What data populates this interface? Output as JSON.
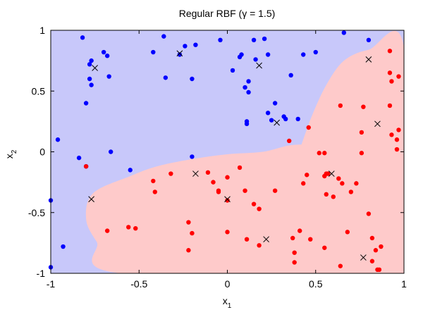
{
  "chart_data": {
    "type": "scatter",
    "title": "Regular RBF (γ = 1.5)",
    "xlabel": "x",
    "xlabel_sub": "1",
    "ylabel": "x",
    "ylabel_sub": "2",
    "xlim": [
      -1,
      1
    ],
    "ylim": [
      -1,
      1
    ],
    "grid": false,
    "xticks": [
      "-1",
      "-0.5",
      "0",
      "0.5",
      "1"
    ],
    "yticks": [
      "-1",
      "-0.5",
      "0",
      "0.5",
      "1"
    ],
    "region_colors": {
      "class_blue": "#c8c8fa",
      "class_red": "#fecaca"
    },
    "decision_boundary": [
      [
        -1.0,
        0.0
      ],
      [
        0.42,
        0.06
      ],
      [
        0.48,
        0.3
      ],
      [
        0.56,
        0.55
      ],
      [
        0.66,
        0.75
      ],
      [
        0.8,
        0.84
      ],
      [
        1.0,
        0.86
      ],
      [
        1.0,
        -1.0
      ],
      [
        -0.6,
        -1.0
      ],
      [
        -0.74,
        -0.74
      ],
      [
        -0.8,
        -0.55
      ],
      [
        -0.76,
        -0.34
      ],
      [
        -0.55,
        -0.2
      ],
      [
        -0.4,
        -0.12
      ],
      [
        -0.2,
        -0.06
      ],
      [
        0.0,
        -0.02
      ],
      [
        0.2,
        0.0
      ],
      [
        0.34,
        0.05
      ],
      [
        0.42,
        0.06
      ]
    ],
    "series": [
      {
        "marker": "dot",
        "color": "#0000ff",
        "points": [
          [
            -0.82,
            0.94
          ],
          [
            -0.77,
            0.75
          ],
          [
            -0.78,
            0.72
          ],
          [
            -0.7,
            0.82
          ],
          [
            -0.68,
            0.79
          ],
          [
            -0.78,
            0.6
          ],
          [
            -0.77,
            0.55
          ],
          [
            -0.67,
            0.62
          ],
          [
            -0.8,
            0.4
          ],
          [
            -0.96,
            0.1
          ],
          [
            -0.84,
            -0.05
          ],
          [
            -0.8,
            -0.12
          ],
          [
            -1.0,
            -0.4
          ],
          [
            -1.0,
            -0.95
          ],
          [
            -0.93,
            -0.78
          ],
          [
            -0.66,
            0.0
          ],
          [
            -0.55,
            -0.15
          ],
          [
            -0.42,
            0.82
          ],
          [
            -0.36,
            0.95
          ],
          [
            -0.35,
            0.61
          ],
          [
            -0.27,
            0.8
          ],
          [
            -0.24,
            0.87
          ],
          [
            -0.18,
            0.88
          ],
          [
            -0.2,
            0.6
          ],
          [
            -0.2,
            -0.04
          ],
          [
            -0.04,
            0.92
          ],
          [
            0.03,
            0.67
          ],
          [
            0.07,
            0.78
          ],
          [
            0.08,
            0.8
          ],
          [
            0.1,
            0.53
          ],
          [
            0.11,
            0.23
          ],
          [
            0.11,
            0.25
          ],
          [
            0.12,
            0.58
          ],
          [
            0.12,
            0.49
          ],
          [
            0.15,
            0.92
          ],
          [
            0.16,
            0.76
          ],
          [
            0.21,
            0.93
          ],
          [
            0.23,
            0.8
          ],
          [
            0.23,
            0.32
          ],
          [
            0.25,
            0.26
          ],
          [
            0.27,
            0.4
          ],
          [
            0.32,
            0.29
          ],
          [
            0.33,
            0.27
          ],
          [
            0.36,
            0.63
          ],
          [
            0.4,
            0.27
          ],
          [
            0.43,
            0.8
          ],
          [
            0.5,
            0.82
          ],
          [
            0.66,
            0.98
          ],
          [
            0.8,
            0.92
          ]
        ]
      },
      {
        "marker": "dot",
        "color": "#ff0000",
        "points": [
          [
            -0.68,
            -0.65
          ],
          [
            -0.56,
            -0.62
          ],
          [
            -0.52,
            -0.63
          ],
          [
            -0.42,
            -0.24
          ],
          [
            -0.41,
            -0.33
          ],
          [
            -0.32,
            -0.18
          ],
          [
            -0.22,
            -0.58
          ],
          [
            -0.22,
            -0.81
          ],
          [
            -0.2,
            -0.67
          ],
          [
            -0.11,
            -0.17
          ],
          [
            -0.08,
            -0.25
          ],
          [
            -0.05,
            -0.32
          ],
          [
            -0.05,
            -0.33
          ],
          [
            0.0,
            -0.21
          ],
          [
            0.0,
            -0.4
          ],
          [
            0.0,
            -0.66
          ],
          [
            0.07,
            -0.13
          ],
          [
            0.1,
            -0.32
          ],
          [
            0.11,
            -0.72
          ],
          [
            0.15,
            -0.43
          ],
          [
            0.18,
            -0.47
          ],
          [
            0.18,
            -0.77
          ],
          [
            0.27,
            -0.32
          ],
          [
            0.35,
            0.09
          ],
          [
            0.37,
            -0.71
          ],
          [
            0.38,
            -0.83
          ],
          [
            0.38,
            -0.91
          ],
          [
            0.41,
            -0.65
          ],
          [
            0.43,
            -0.26
          ],
          [
            0.45,
            -0.19
          ],
          [
            0.46,
            0.2
          ],
          [
            0.47,
            -0.72
          ],
          [
            0.52,
            -0.01
          ],
          [
            0.55,
            -0.01
          ],
          [
            0.55,
            -0.2
          ],
          [
            0.55,
            -0.79
          ],
          [
            0.56,
            -0.18
          ],
          [
            0.56,
            -0.35
          ],
          [
            0.57,
            -0.18
          ],
          [
            0.6,
            -0.37
          ],
          [
            0.63,
            -0.22
          ],
          [
            0.64,
            0.38
          ],
          [
            0.65,
            -0.26
          ],
          [
            0.68,
            -0.66
          ],
          [
            0.7,
            -0.33
          ],
          [
            0.73,
            -0.26
          ],
          [
            0.76,
            -0.01
          ],
          [
            0.76,
            0.16
          ],
          [
            0.77,
            0.37
          ],
          [
            0.8,
            -0.51
          ],
          [
            0.82,
            -0.71
          ],
          [
            0.82,
            -0.9
          ],
          [
            0.84,
            -0.81
          ],
          [
            0.85,
            -0.97
          ],
          [
            0.86,
            -0.97
          ],
          [
            0.87,
            -0.78
          ],
          [
            0.92,
            0.83
          ],
          [
            0.92,
            0.65
          ],
          [
            0.92,
            0.38
          ],
          [
            0.93,
            0.14
          ],
          [
            0.93,
            0.58
          ],
          [
            0.96,
            0.02
          ],
          [
            0.96,
            0.1
          ],
          [
            0.97,
            0.62
          ],
          [
            0.97,
            0.18
          ],
          [
            0.64,
            -0.94
          ],
          [
            -0.8,
            -0.12
          ]
        ]
      },
      {
        "marker": "x",
        "color": "#000000",
        "points": [
          [
            -0.75,
            0.69
          ],
          [
            -0.27,
            0.81
          ],
          [
            0.18,
            0.71
          ],
          [
            0.8,
            0.76
          ],
          [
            0.28,
            0.24
          ],
          [
            0.85,
            0.23
          ],
          [
            -0.18,
            -0.18
          ],
          [
            0.59,
            -0.18
          ],
          [
            -0.77,
            -0.39
          ],
          [
            0.0,
            -0.39
          ],
          [
            0.22,
            -0.72
          ],
          [
            0.77,
            -0.87
          ]
        ]
      }
    ]
  }
}
